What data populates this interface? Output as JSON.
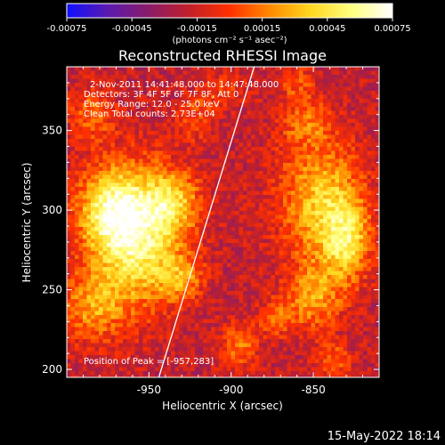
{
  "colorbar": {
    "min": -0.00075,
    "max": 0.00075,
    "tick_values": [
      -0.00075,
      -0.00045,
      -0.00015,
      0.00015,
      0.00045,
      0.00075
    ],
    "tick_labels": [
      "-0.00075",
      "-0.00045",
      "-0.00015",
      "0.00015",
      "0.00045",
      "0.00075"
    ],
    "units": "(photons cm⁻² s⁻¹ asec⁻²)",
    "colors": [
      "#1010ff",
      "#5a1ab0",
      "#8a1c6a",
      "#c0202a",
      "#ff3000",
      "#ff8a00",
      "#ffd820",
      "#ffff80",
      "#ffffff"
    ]
  },
  "annotations": {
    "time": "2-Nov-2011 14:41:48.000 to 14:47:48.000",
    "detectors": "Detectors: 3F 4F 5F 6F 7F 8F, Att 0",
    "energy": "Energy Range: 12.0 - 25.0 keV",
    "clean": "Clean    Total counts: 2.73E+04",
    "peak": "Position of Peak = [-957,283]"
  },
  "footer": {
    "timestamp": "15-May-2022 18:14"
  },
  "chart_data": {
    "type": "heatmap",
    "title": "Reconstructed RHESSI Image",
    "xlabel": "Heliocentric X (arcsec)",
    "ylabel": "Heliocentric Y (arcsec)",
    "xlim": [
      -1000,
      -810
    ],
    "ylim": [
      195,
      390
    ],
    "x_ticks": [
      -950,
      -900,
      -850
    ],
    "x_tick_labels": [
      "-950",
      "-900",
      "-850"
    ],
    "y_ticks": [
      200,
      250,
      300,
      350
    ],
    "y_tick_labels": [
      "200",
      "250",
      "300",
      "350"
    ],
    "grid": false,
    "limb_line": {
      "x": [
        -944,
        -886
      ],
      "y": [
        195,
        390
      ]
    },
    "peak": {
      "x": -957,
      "y": 283
    },
    "emission_sources": [
      {
        "x": -957,
        "y": 283,
        "sx": 18,
        "sy": 30,
        "amp": 0.00075
      },
      {
        "x": -975,
        "y": 300,
        "sx": 14,
        "sy": 18,
        "amp": 0.00055
      },
      {
        "x": -935,
        "y": 305,
        "sx": 12,
        "sy": 14,
        "amp": 0.00045
      },
      {
        "x": -930,
        "y": 258,
        "sx": 10,
        "sy": 10,
        "amp": 0.00035
      },
      {
        "x": -985,
        "y": 240,
        "sx": 14,
        "sy": 16,
        "amp": 0.0004
      },
      {
        "x": -985,
        "y": 360,
        "sx": 10,
        "sy": 12,
        "amp": 0.0003
      },
      {
        "x": -922,
        "y": 358,
        "sx": 8,
        "sy": 10,
        "amp": 0.00025
      },
      {
        "x": -845,
        "y": 305,
        "sx": 18,
        "sy": 28,
        "amp": 0.00055
      },
      {
        "x": -830,
        "y": 280,
        "sx": 10,
        "sy": 18,
        "amp": 0.0005
      },
      {
        "x": -850,
        "y": 245,
        "sx": 12,
        "sy": 14,
        "amp": 0.0004
      },
      {
        "x": -855,
        "y": 355,
        "sx": 10,
        "sy": 10,
        "amp": 0.0003
      },
      {
        "x": -895,
        "y": 215,
        "sx": 8,
        "sy": 10,
        "amp": 0.00035
      },
      {
        "x": -872,
        "y": 232,
        "sx": 8,
        "sy": 8,
        "amp": 0.0003
      },
      {
        "x": -838,
        "y": 205,
        "sx": 8,
        "sy": 8,
        "amp": 0.0003
      },
      {
        "x": -905,
        "y": 375,
        "sx": 10,
        "sy": 8,
        "amp": 0.0002
      },
      {
        "x": -860,
        "y": 380,
        "sx": 8,
        "sy": 8,
        "amp": 0.00025
      }
    ],
    "background_level": -0.0002
  }
}
